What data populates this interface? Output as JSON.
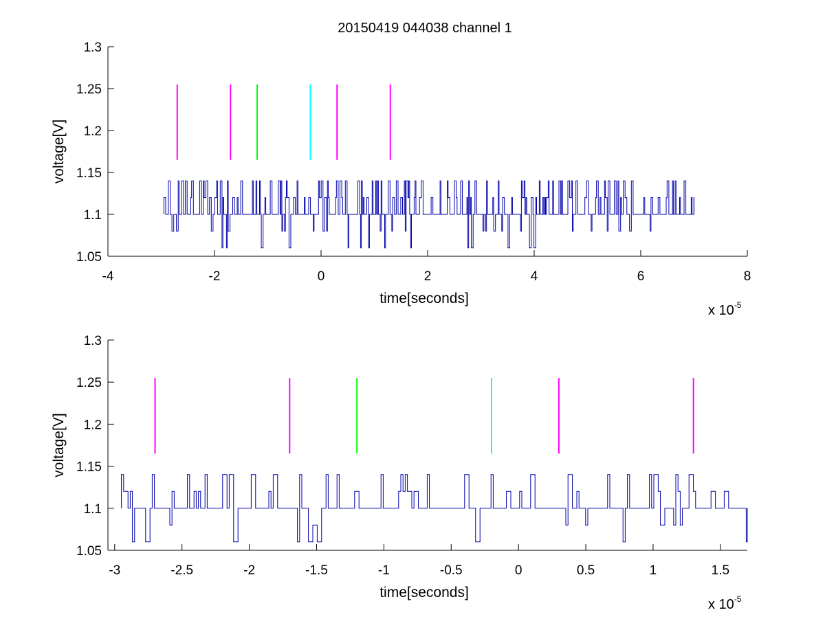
{
  "figure": {
    "title": "20150419 044038 channel 1",
    "background": "#ffffff"
  },
  "chart_data": [
    {
      "type": "line",
      "title": "20150419 044038 channel 1",
      "xlabel": "time[seconds]",
      "ylabel": "voltage[V]",
      "x_scale_label": "x 10",
      "x_scale_exponent": "-5",
      "x_units_multiplier": 1e-05,
      "xlim": [
        -4,
        8
      ],
      "ylim": [
        1.05,
        1.3
      ],
      "xticks": [
        -4,
        -2,
        0,
        2,
        4,
        6,
        8
      ],
      "xtick_labels": [
        "-4",
        "-2",
        "0",
        "2",
        "4",
        "6",
        "8"
      ],
      "yticks": [
        1.05,
        1.1,
        1.15,
        1.2,
        1.25,
        1.3
      ],
      "ytick_labels": [
        "1.05",
        "1.1",
        "1.15",
        "1.2",
        "1.25",
        "1.3"
      ],
      "grid": false,
      "series": [
        {
          "style": "step-noise",
          "color": "#0000aa",
          "x_start": -2.95,
          "x_end": 7.0,
          "levels": [
            1.06,
            1.08,
            1.1,
            1.12,
            1.14
          ],
          "baseline": 1.1,
          "seed": 7,
          "spike_density": 0.55
        }
      ],
      "markers": [
        {
          "x": -2.7,
          "y_from": 1.165,
          "y_to": 1.255,
          "color": "#ff00ff"
        },
        {
          "x": -1.7,
          "y_from": 1.165,
          "y_to": 1.255,
          "color": "#ff00ff"
        },
        {
          "x": -1.2,
          "y_from": 1.165,
          "y_to": 1.255,
          "color": "#00ff00"
        },
        {
          "x": -0.2,
          "y_from": 1.165,
          "y_to": 1.255,
          "color": "#00ffff"
        },
        {
          "x": 0.3,
          "y_from": 1.165,
          "y_to": 1.255,
          "color": "#ff00ff"
        },
        {
          "x": 1.3,
          "y_from": 1.165,
          "y_to": 1.255,
          "color": "#ff00ff"
        }
      ]
    },
    {
      "type": "line",
      "title": "",
      "xlabel": "time[seconds]",
      "ylabel": "voltage[V]",
      "x_scale_label": "x 10",
      "x_scale_exponent": "-5",
      "x_units_multiplier": 1e-05,
      "xlim": [
        -3.05,
        1.7
      ],
      "ylim": [
        1.05,
        1.3
      ],
      "xticks": [
        -3,
        -2.5,
        -2,
        -1.5,
        -1,
        -0.5,
        0,
        0.5,
        1,
        1.5
      ],
      "xtick_labels": [
        "-3",
        "-2.5",
        "-2",
        "-1.5",
        "-1",
        "-0.5",
        "0",
        "0.5",
        "1",
        "1.5"
      ],
      "yticks": [
        1.05,
        1.1,
        1.15,
        1.2,
        1.25,
        1.3
      ],
      "ytick_labels": [
        "1.05",
        "1.1",
        "1.15",
        "1.2",
        "1.25",
        "1.3"
      ],
      "grid": false,
      "series": [
        {
          "style": "step-noise",
          "color": "#0000aa",
          "x_start": -2.95,
          "x_end": 1.7,
          "levels": [
            1.06,
            1.08,
            1.1,
            1.12,
            1.14
          ],
          "baseline": 1.1,
          "seed": 11,
          "spike_density": 0.45
        }
      ],
      "markers": [
        {
          "x": -2.7,
          "y_from": 1.165,
          "y_to": 1.255,
          "color": "#ff00ff"
        },
        {
          "x": -1.7,
          "y_from": 1.165,
          "y_to": 1.255,
          "color": "#ff00ff"
        },
        {
          "x": -1.2,
          "y_from": 1.165,
          "y_to": 1.255,
          "color": "#00ff00"
        },
        {
          "x": -0.2,
          "y_from": 1.165,
          "y_to": 1.255,
          "color": "#00ffff"
        },
        {
          "x": 0.3,
          "y_from": 1.165,
          "y_to": 1.255,
          "color": "#ff00ff"
        },
        {
          "x": 1.3,
          "y_from": 1.165,
          "y_to": 1.255,
          "color": "#ff00ff"
        }
      ]
    }
  ]
}
